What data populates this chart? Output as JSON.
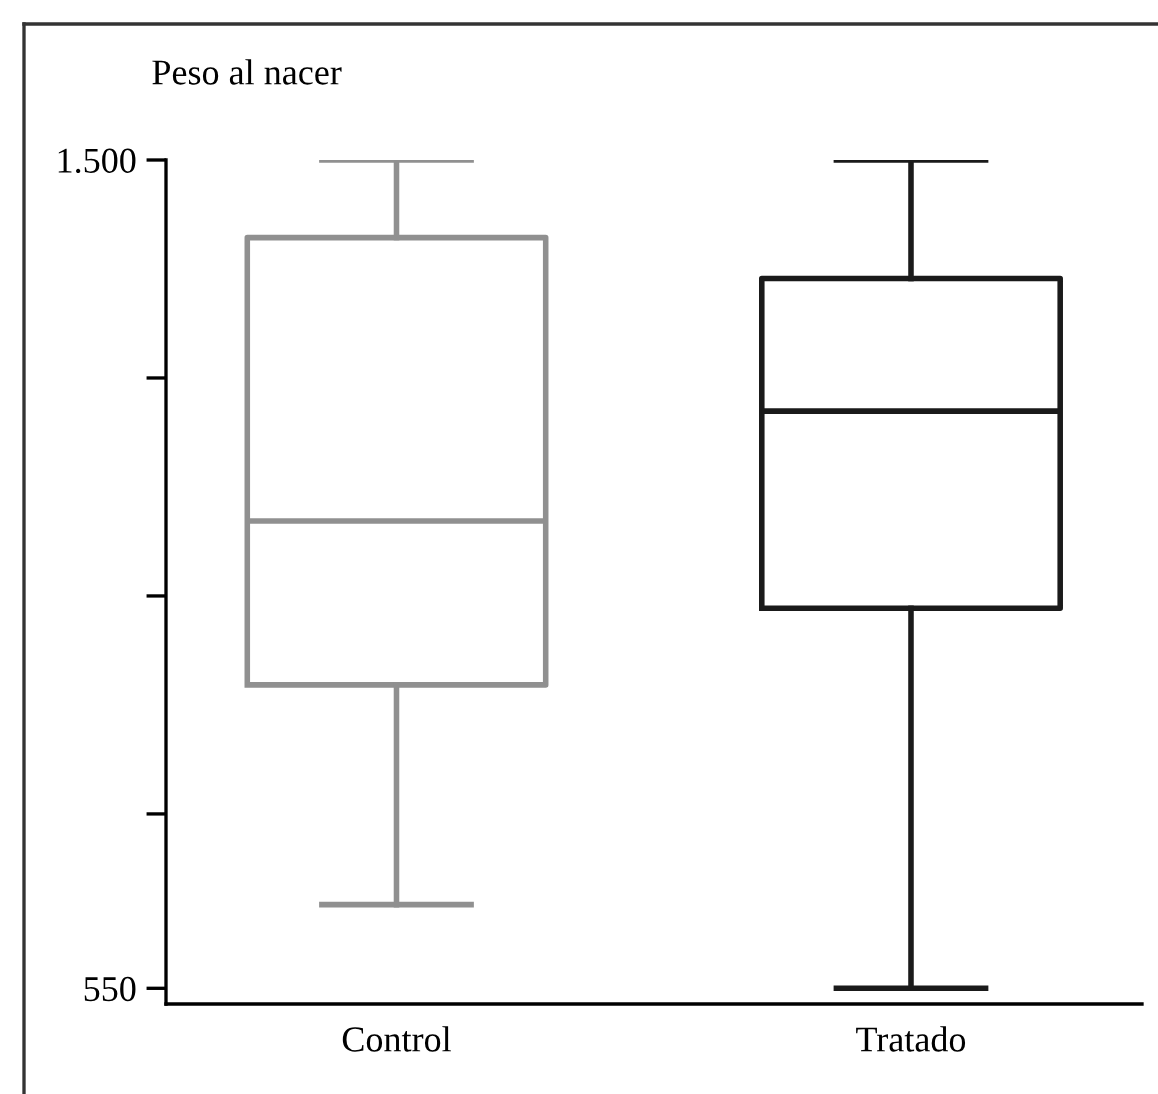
{
  "chart_data": {
    "type": "box",
    "ylabel": "Peso al nacer",
    "categories": [
      "Control",
      "Tratado"
    ],
    "boxes": [
      {
        "low": 646,
        "q1": 898,
        "median": 1086,
        "q3": 1411,
        "high": 1500
      },
      {
        "low": 550,
        "q1": 986,
        "median": 1212,
        "q3": 1364,
        "high": 1500
      }
    ],
    "colors": [
      "#909090",
      "#1a1a1a"
    ],
    "ylim": [
      532,
      1500
    ],
    "yticks": [
      {
        "value": 550,
        "label": "550"
      },
      {
        "value": 750,
        "label": null
      },
      {
        "value": 1000,
        "label": null
      },
      {
        "value": 1250,
        "label": null
      },
      {
        "value": 1500,
        "label": "1.500"
      }
    ],
    "grid": false
  }
}
